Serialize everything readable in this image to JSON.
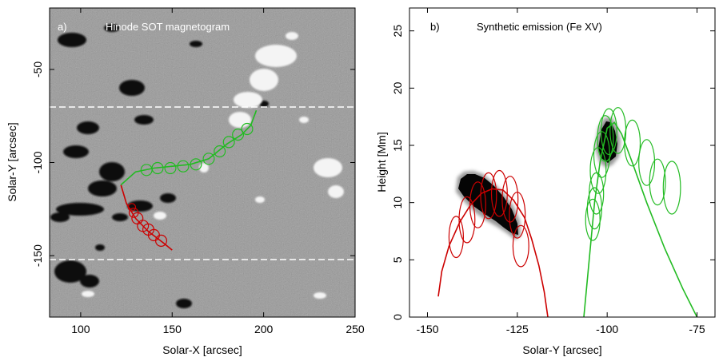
{
  "chart_data": [
    {
      "type": "scatter",
      "panel_label": "a)",
      "title": "Hinode SOT magnetogram",
      "xlabel": "Solar-X [arcsec]",
      "ylabel": "Solar-Y [arcsec]",
      "xlim": [
        83,
        250
      ],
      "ylim": [
        -183,
        -17
      ],
      "xticks": [
        "100",
        "150",
        "200",
        "250"
      ],
      "yticks": [
        "-50",
        "-100",
        "-150"
      ],
      "background": "grayscale magnetogram",
      "dashed_lines_y": [
        -69,
        -150
      ],
      "colors": {
        "red": "#cc0000",
        "green": "#22bb22",
        "dashed": "#ffffff"
      },
      "series": [
        {
          "color": "red",
          "line": [
            [
              122,
              -112
            ],
            [
              125,
              -122
            ],
            [
              130,
              -130
            ],
            [
              137,
              -137
            ],
            [
              145,
              -143
            ],
            [
              150,
              -147
            ]
          ],
          "circles": [
            [
              128,
              -124,
              2
            ],
            [
              129,
              -127,
              2.5
            ],
            [
              131,
              -130,
              3
            ],
            [
              134,
              -134,
              3
            ],
            [
              137,
              -136,
              3
            ],
            [
              140,
              -139,
              3
            ],
            [
              144,
              -142,
              3
            ]
          ]
        },
        {
          "color": "green",
          "line": [
            [
              122,
              -112
            ],
            [
              130,
              -105
            ],
            [
              140,
              -103
            ],
            [
              150,
              -102
            ],
            [
              160,
              -101
            ],
            [
              170,
              -98
            ],
            [
              180,
              -90
            ],
            [
              188,
              -85
            ],
            [
              193,
              -80
            ],
            [
              196,
              -72
            ]
          ],
          "circles": [
            [
              136,
              -104,
              3
            ],
            [
              142,
              -103,
              3
            ],
            [
              149,
              -103,
              3
            ],
            [
              156,
              -102,
              3
            ],
            [
              163,
              -101,
              3
            ],
            [
              170,
              -98,
              3
            ],
            [
              176,
              -94,
              3
            ],
            [
              181,
              -89,
              3
            ],
            [
              186,
              -85,
              3
            ],
            [
              191,
              -82,
              3
            ]
          ]
        }
      ]
    },
    {
      "type": "scatter",
      "panel_label": "b)",
      "title": "Synthetic emission (Fe XV)",
      "xlabel": "Solar-Y [arcsec]",
      "ylabel": "Height [Mm]",
      "xlim": [
        -155,
        -70
      ],
      "ylim": [
        0,
        27
      ],
      "xticks": [
        "-150",
        "-125",
        "-100",
        "-75"
      ],
      "yticks": [
        "0",
        "5",
        "10",
        "15",
        "20",
        "25"
      ],
      "colors": {
        "red": "#cc0000",
        "green": "#22bb22",
        "emission": "#000000"
      },
      "series": [
        {
          "color": "red",
          "line": [
            [
              -147,
              1.8
            ],
            [
              -146,
              4
            ],
            [
              -144,
              6.2
            ],
            [
              -141,
              8.3
            ],
            [
              -138,
              9.8
            ],
            [
              -135,
              10.8
            ],
            [
              -132,
              11.2
            ],
            [
              -129,
              11.1
            ],
            [
              -126,
              10.2
            ],
            [
              -123,
              8.7
            ],
            [
              -121,
              6.8
            ],
            [
              -119,
              4.5
            ],
            [
              -117.5,
              2.2
            ],
            [
              -116.5,
              0
            ]
          ],
          "circles": [
            [
              -142,
              7,
              2,
              1.8
            ],
            [
              -139,
              8.5,
              2.2,
              2
            ],
            [
              -136,
              9.8,
              2.2,
              2
            ],
            [
              -133,
              10.6,
              2.2,
              2
            ],
            [
              -130,
              10.8,
              2.2,
              2
            ],
            [
              -127,
              10.3,
              2.2,
              2
            ],
            [
              -125,
              8.9,
              2.2,
              2
            ],
            [
              -124,
              6.2,
              2.2,
              1.8
            ]
          ]
        },
        {
          "color": "green",
          "line": [
            [
              -106.5,
              0
            ],
            [
              -105,
              5
            ],
            [
              -103.5,
              10
            ],
            [
              -102,
              13.5
            ],
            [
              -100,
              16.5
            ],
            [
              -98,
              17
            ],
            [
              -96,
              16
            ],
            [
              -93,
              13.5
            ],
            [
              -89,
              10
            ],
            [
              -84,
              6
            ],
            [
              -79,
              2.5
            ],
            [
              -75,
              0
            ]
          ],
          "circles": [
            [
              -104,
              8.5,
              2,
              1.8
            ],
            [
              -103.5,
              9.5,
              2,
              1.8
            ],
            [
              -103,
              10.8,
              2,
              1.8
            ],
            [
              -102.5,
              12.8,
              2.2,
              2
            ],
            [
              -101.5,
              14.2,
              2.2,
              2
            ],
            [
              -100.5,
              15.6,
              2.2,
              2
            ],
            [
              -99.5,
              16.2,
              2.2,
              2
            ],
            [
              -97,
              16.3,
              2.2,
              2
            ],
            [
              -93,
              15.2,
              2.2,
              2
            ],
            [
              -89,
              13.5,
              2.2,
              2
            ],
            [
              -86,
              11.8,
              2.2,
              2
            ],
            [
              -82,
              11.3,
              2.4,
              2.3
            ]
          ]
        }
      ],
      "emission_blobs": [
        {
          "region": "left",
          "center": [
            -133,
            11
          ],
          "extent": "Solar-Y -140 to -123, height 7.5 to 13"
        },
        {
          "region": "right",
          "center": [
            -100,
            16
          ],
          "extent": "Solar-Y -103 to -97, height 13 to 18"
        }
      ]
    }
  ]
}
